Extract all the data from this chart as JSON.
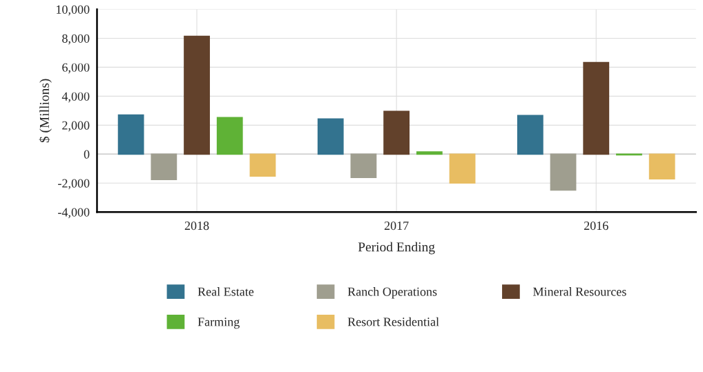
{
  "chart_data": {
    "type": "bar",
    "xlabel": "Period Ending",
    "ylabel": "$ (Millions)",
    "categories": [
      "2018",
      "2017",
      "2016"
    ],
    "series": [
      {
        "name": "Real Estate",
        "color": "#33738f",
        "values": [
          2700,
          2430,
          2670
        ]
      },
      {
        "name": "Ranch Operations",
        "color": "#9f9e8f",
        "values": [
          -1760,
          -1620,
          -2480
        ]
      },
      {
        "name": "Mineral Resources",
        "color": "#62412b",
        "values": [
          8140,
          2950,
          6330
        ]
      },
      {
        "name": "Farming",
        "color": "#5fb236",
        "values": [
          2520,
          150,
          -50
        ]
      },
      {
        "name": "Resort Residential",
        "color": "#e8bd62",
        "values": [
          -1520,
          -2000,
          -1710
        ]
      }
    ],
    "ylim": [
      -4000,
      10000
    ],
    "yticks": [
      {
        "value": -4000,
        "label": "-4,000"
      },
      {
        "value": -2000,
        "label": "-2,000"
      },
      0,
      {
        "value": 2000,
        "label": "2,000"
      },
      {
        "value": 4000,
        "label": "4,000"
      },
      {
        "value": 6000,
        "label": "6,000"
      },
      {
        "value": 8000,
        "label": "8,000"
      },
      {
        "value": 10000,
        "label": "10,000"
      }
    ],
    "grid": true,
    "legend": "bottom"
  }
}
